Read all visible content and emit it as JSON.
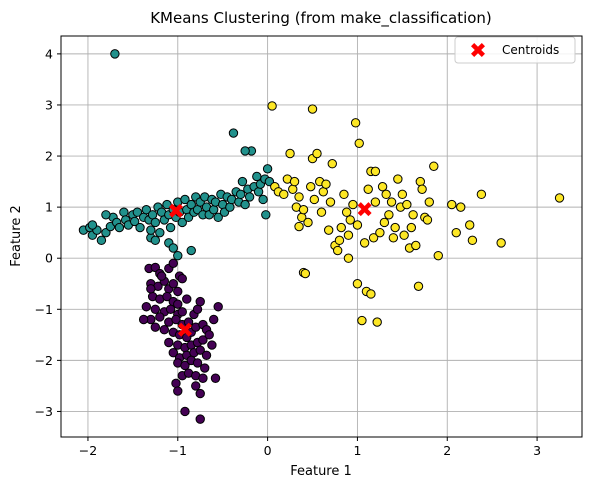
{
  "chart_data": {
    "type": "scatter",
    "title": "KMeans Clustering (from make_classification)",
    "xlabel": "Feature 1",
    "ylabel": "Feature 2",
    "xlim": [
      -2.3,
      3.5
    ],
    "ylim": [
      -3.5,
      4.35
    ],
    "xticks": [
      -2,
      -1,
      0,
      1,
      2,
      3
    ],
    "yticks": [
      -3,
      -2,
      -1,
      0,
      1,
      2,
      3,
      4
    ],
    "grid": true,
    "legend_position": "top-right",
    "legend": [
      {
        "label": "Centroids",
        "marker": "X",
        "color": "#ff0000"
      }
    ],
    "colors": {
      "cluster_0": "#440154",
      "cluster_1": "#21918c",
      "cluster_2": "#fde725",
      "centroid": "#ff0000",
      "edge": "#000000",
      "grid": "#b0b0b0"
    },
    "centroids": [
      [
        -1.02,
        0.93
      ],
      [
        -0.92,
        -1.4
      ],
      [
        1.08,
        0.96
      ]
    ],
    "clusters": [
      {
        "color": "#440154",
        "points": [
          [
            -1.32,
            -0.2
          ],
          [
            -1.25,
            -0.18
          ],
          [
            -1.2,
            -0.3
          ],
          [
            -1.1,
            -0.2
          ],
          [
            -1.05,
            -0.1
          ],
          [
            -0.98,
            -0.35
          ],
          [
            -1.3,
            -0.5
          ],
          [
            -1.22,
            -0.55
          ],
          [
            -1.15,
            -0.45
          ],
          [
            -1.1,
            -0.6
          ],
          [
            -1.05,
            -0.5
          ],
          [
            -1.0,
            -0.65
          ],
          [
            -0.95,
            -0.4
          ],
          [
            -1.28,
            -0.75
          ],
          [
            -1.2,
            -0.8
          ],
          [
            -1.12,
            -0.75
          ],
          [
            -1.05,
            -0.85
          ],
          [
            -1.0,
            -0.9
          ],
          [
            -1.35,
            -0.95
          ],
          [
            -1.25,
            -1.0
          ],
          [
            -1.15,
            -1.05
          ],
          [
            -1.08,
            -1.0
          ],
          [
            -1.0,
            -1.1
          ],
          [
            -0.95,
            -1.05
          ],
          [
            -0.9,
            -0.8
          ],
          [
            -1.3,
            -1.2
          ],
          [
            -1.2,
            -1.15
          ],
          [
            -1.1,
            -1.25
          ],
          [
            -1.02,
            -1.2
          ],
          [
            -0.95,
            -1.3
          ],
          [
            -0.88,
            -1.25
          ],
          [
            -0.82,
            -1.1
          ],
          [
            -0.78,
            -1.0
          ],
          [
            -0.75,
            -0.85
          ],
          [
            -1.25,
            -1.35
          ],
          [
            -1.15,
            -1.4
          ],
          [
            -1.05,
            -1.45
          ],
          [
            -0.98,
            -1.5
          ],
          [
            -0.9,
            -1.55
          ],
          [
            -0.85,
            -1.45
          ],
          [
            -0.8,
            -1.35
          ],
          [
            -0.72,
            -1.3
          ],
          [
            -0.68,
            -1.4
          ],
          [
            -1.1,
            -1.65
          ],
          [
            -1.0,
            -1.7
          ],
          [
            -0.92,
            -1.75
          ],
          [
            -0.85,
            -1.7
          ],
          [
            -0.78,
            -1.65
          ],
          [
            -0.72,
            -1.6
          ],
          [
            -0.65,
            -1.5
          ],
          [
            -1.05,
            -1.85
          ],
          [
            -0.98,
            -1.95
          ],
          [
            -0.9,
            -1.9
          ],
          [
            -0.82,
            -1.85
          ],
          [
            -0.75,
            -1.8
          ],
          [
            -0.68,
            -1.9
          ],
          [
            -0.62,
            -1.7
          ],
          [
            -1.0,
            -2.05
          ],
          [
            -0.92,
            -2.1
          ],
          [
            -0.85,
            -2.0
          ],
          [
            -0.78,
            -2.05
          ],
          [
            -0.7,
            -2.15
          ],
          [
            -0.95,
            -2.3
          ],
          [
            -0.88,
            -2.25
          ],
          [
            -0.8,
            -2.3
          ],
          [
            -0.72,
            -2.35
          ],
          [
            -1.02,
            -2.45
          ],
          [
            -0.8,
            -2.5
          ],
          [
            -1.0,
            -2.6
          ],
          [
            -0.75,
            -2.65
          ],
          [
            -0.58,
            -2.35
          ],
          [
            -0.92,
            -3.0
          ],
          [
            -0.75,
            -3.15
          ],
          [
            -1.38,
            -1.2
          ],
          [
            -1.3,
            -0.6
          ],
          [
            -1.18,
            -0.35
          ],
          [
            -0.6,
            -1.2
          ],
          [
            -0.55,
            -0.95
          ]
        ]
      },
      {
        "color": "#21918c",
        "points": [
          [
            -1.7,
            4.0
          ],
          [
            -2.05,
            0.55
          ],
          [
            -1.98,
            0.6
          ],
          [
            -1.95,
            0.45
          ],
          [
            -1.9,
            0.55
          ],
          [
            -1.85,
            0.35
          ],
          [
            -1.8,
            0.5
          ],
          [
            -1.75,
            0.62
          ],
          [
            -1.72,
            0.8
          ],
          [
            -1.68,
            0.7
          ],
          [
            -1.65,
            0.6
          ],
          [
            -1.6,
            0.9
          ],
          [
            -1.58,
            0.75
          ],
          [
            -1.55,
            0.65
          ],
          [
            -1.5,
            0.85
          ],
          [
            -1.48,
            0.72
          ],
          [
            -1.45,
            0.9
          ],
          [
            -1.42,
            0.6
          ],
          [
            -1.38,
            0.8
          ],
          [
            -1.35,
            0.95
          ],
          [
            -1.32,
            0.75
          ],
          [
            -1.3,
            0.4
          ],
          [
            -1.28,
            0.85
          ],
          [
            -1.25,
            0.7
          ],
          [
            -1.22,
            1.0
          ],
          [
            -1.2,
            0.5
          ],
          [
            -1.18,
            0.9
          ],
          [
            -1.15,
            0.75
          ],
          [
            -1.12,
            1.05
          ],
          [
            -1.1,
            0.85
          ],
          [
            -1.08,
            0.6
          ],
          [
            -1.05,
            0.95
          ],
          [
            -1.02,
            0.8
          ],
          [
            -1.0,
            1.1
          ],
          [
            -0.98,
            0.9
          ],
          [
            -0.95,
            0.7
          ],
          [
            -0.92,
            1.15
          ],
          [
            -0.9,
            0.95
          ],
          [
            -0.88,
            0.8
          ],
          [
            -0.85,
            1.05
          ],
          [
            -0.82,
            0.9
          ],
          [
            -0.8,
            1.2
          ],
          [
            -0.78,
            0.95
          ],
          [
            -0.75,
            1.1
          ],
          [
            -0.72,
            0.85
          ],
          [
            -0.7,
            1.2
          ],
          [
            -0.68,
            1.0
          ],
          [
            -0.65,
            0.85
          ],
          [
            -0.62,
            1.15
          ],
          [
            -0.6,
            0.95
          ],
          [
            -0.58,
            1.1
          ],
          [
            -0.55,
            0.8
          ],
          [
            -0.52,
            1.25
          ],
          [
            -0.5,
            1.05
          ],
          [
            -0.48,
            0.9
          ],
          [
            -0.45,
            1.2
          ],
          [
            -0.42,
            1.0
          ],
          [
            -0.4,
            1.15
          ],
          [
            -0.38,
            2.45
          ],
          [
            -0.35,
            1.3
          ],
          [
            -0.32,
            1.1
          ],
          [
            -0.3,
            1.25
          ],
          [
            -0.28,
            1.5
          ],
          [
            -0.25,
            1.05
          ],
          [
            -0.22,
            1.35
          ],
          [
            -0.2,
            1.2
          ],
          [
            -0.18,
            2.1
          ],
          [
            -0.15,
            1.4
          ],
          [
            -0.12,
            1.6
          ],
          [
            -0.1,
            1.3
          ],
          [
            -0.08,
            1.45
          ],
          [
            -0.05,
            1.15
          ],
          [
            -0.03,
            1.55
          ],
          [
            0.0,
            1.75
          ],
          [
            0.02,
            1.5
          ],
          [
            -0.02,
            0.85
          ],
          [
            -0.25,
            2.1
          ],
          [
            -1.25,
            0.35
          ],
          [
            -1.1,
            0.3
          ],
          [
            -0.85,
            0.15
          ],
          [
            -1.05,
            0.2
          ],
          [
            -1.0,
            0.05
          ],
          [
            -1.3,
            0.55
          ],
          [
            -1.95,
            0.65
          ],
          [
            -1.8,
            0.85
          ]
        ]
      },
      {
        "color": "#fde725",
        "points": [
          [
            0.05,
            2.98
          ],
          [
            0.5,
            2.92
          ],
          [
            0.08,
            1.4
          ],
          [
            0.12,
            1.3
          ],
          [
            0.18,
            1.25
          ],
          [
            0.22,
            1.55
          ],
          [
            0.25,
            2.05
          ],
          [
            0.28,
            1.35
          ],
          [
            0.3,
            1.5
          ],
          [
            0.32,
            1.0
          ],
          [
            0.35,
            1.2
          ],
          [
            0.35,
            0.62
          ],
          [
            0.38,
            0.8
          ],
          [
            0.4,
            0.95
          ],
          [
            0.4,
            -0.28
          ],
          [
            0.42,
            -0.3
          ],
          [
            0.45,
            0.7
          ],
          [
            0.48,
            1.4
          ],
          [
            0.5,
            1.95
          ],
          [
            0.52,
            1.15
          ],
          [
            0.55,
            2.05
          ],
          [
            0.58,
            1.5
          ],
          [
            0.6,
            0.9
          ],
          [
            0.62,
            1.3
          ],
          [
            0.65,
            1.45
          ],
          [
            0.68,
            0.55
          ],
          [
            0.7,
            1.1
          ],
          [
            0.72,
            1.85
          ],
          [
            0.75,
            0.25
          ],
          [
            0.78,
            0.15
          ],
          [
            0.8,
            0.35
          ],
          [
            0.82,
            0.6
          ],
          [
            0.85,
            1.25
          ],
          [
            0.88,
            0.9
          ],
          [
            0.9,
            0.45
          ],
          [
            0.92,
            0.75
          ],
          [
            0.95,
            1.05
          ],
          [
            0.98,
            2.65
          ],
          [
            1.0,
            -0.5
          ],
          [
            1.02,
            2.25
          ],
          [
            1.05,
            -1.22
          ],
          [
            1.08,
            0.3
          ],
          [
            1.1,
            -0.65
          ],
          [
            1.12,
            1.35
          ],
          [
            1.15,
            1.7
          ],
          [
            1.18,
            0.4
          ],
          [
            1.2,
            1.1
          ],
          [
            1.22,
            -1.25
          ],
          [
            1.25,
            0.5
          ],
          [
            1.28,
            1.4
          ],
          [
            1.3,
            0.7
          ],
          [
            1.32,
            1.25
          ],
          [
            1.35,
            0.85
          ],
          [
            1.38,
            1.1
          ],
          [
            1.4,
            0.4
          ],
          [
            1.42,
            0.6
          ],
          [
            1.45,
            1.55
          ],
          [
            1.48,
            1.0
          ],
          [
            1.5,
            1.25
          ],
          [
            1.52,
            0.45
          ],
          [
            1.55,
            1.05
          ],
          [
            1.58,
            0.2
          ],
          [
            1.6,
            0.6
          ],
          [
            1.62,
            0.85
          ],
          [
            1.65,
            0.25
          ],
          [
            1.68,
            -0.55
          ],
          [
            1.7,
            1.5
          ],
          [
            1.72,
            1.35
          ],
          [
            1.75,
            0.8
          ],
          [
            1.78,
            0.75
          ],
          [
            1.8,
            1.1
          ],
          [
            1.85,
            1.8
          ],
          [
            1.9,
            0.05
          ],
          [
            2.05,
            1.05
          ],
          [
            2.1,
            0.5
          ],
          [
            2.15,
            1.0
          ],
          [
            2.25,
            0.65
          ],
          [
            2.28,
            0.35
          ],
          [
            2.38,
            1.25
          ],
          [
            2.6,
            0.3
          ],
          [
            3.25,
            1.18
          ],
          [
            1.15,
            -0.7
          ],
          [
            0.9,
            0.0
          ],
          [
            1.0,
            0.65
          ],
          [
            1.2,
            1.7
          ]
        ]
      }
    ]
  }
}
